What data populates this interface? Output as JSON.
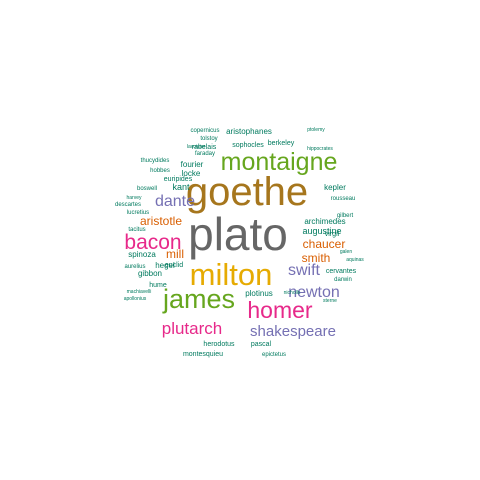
{
  "colors": {
    "teal": "#1b9e77",
    "orange": "#d95f02",
    "purple": "#7570b3",
    "pink": "#e7298a",
    "green": "#66a61e",
    "gold": "#e6ab02",
    "brown": "#a6761d",
    "gray": "#666666",
    "small": "#007a5e"
  },
  "words": [
    {
      "text": "plato",
      "color": "gray"
    },
    {
      "text": "goethe",
      "color": "brown"
    },
    {
      "text": "milton",
      "color": "gold"
    },
    {
      "text": "montaigne",
      "color": "green"
    },
    {
      "text": "james",
      "color": "green"
    },
    {
      "text": "homer",
      "color": "pink"
    },
    {
      "text": "bacon",
      "color": "pink"
    },
    {
      "text": "plutarch",
      "color": "pink"
    },
    {
      "text": "shakespeare",
      "color": "purple"
    },
    {
      "text": "newton",
      "color": "purple"
    },
    {
      "text": "swift",
      "color": "purple"
    },
    {
      "text": "dante",
      "color": "purple"
    },
    {
      "text": "aristotle",
      "color": "orange"
    },
    {
      "text": "chaucer",
      "color": "orange"
    },
    {
      "text": "smith",
      "color": "orange"
    },
    {
      "text": "mill",
      "color": "orange"
    },
    {
      "text": "augustine",
      "color": "small"
    },
    {
      "text": "archimedes",
      "color": "small"
    },
    {
      "text": "kant",
      "color": "small"
    },
    {
      "text": "hegel",
      "color": "small"
    },
    {
      "text": "plotinus",
      "color": "small"
    },
    {
      "text": "spinoza",
      "color": "small"
    },
    {
      "text": "gibbon",
      "color": "small"
    },
    {
      "text": "locke",
      "color": "small"
    },
    {
      "text": "fourier",
      "color": "small"
    },
    {
      "text": "euripides",
      "color": "small"
    },
    {
      "text": "kepler",
      "color": "small"
    },
    {
      "text": "virgil",
      "color": "small"
    },
    {
      "text": "rousseau",
      "color": "small"
    },
    {
      "text": "cervantes",
      "color": "small"
    },
    {
      "text": "darwin",
      "color": "small"
    },
    {
      "text": "herodotus",
      "color": "small"
    },
    {
      "text": "pascal",
      "color": "small"
    },
    {
      "text": "aristophanes",
      "color": "small"
    },
    {
      "text": "sophocles",
      "color": "small"
    },
    {
      "text": "rabelais",
      "color": "small"
    },
    {
      "text": "berkeley",
      "color": "small"
    },
    {
      "text": "montesquieu",
      "color": "small"
    },
    {
      "text": "epictetus",
      "color": "small"
    },
    {
      "text": "euclid",
      "color": "small"
    },
    {
      "text": "aurelius",
      "color": "small"
    },
    {
      "text": "hume",
      "color": "small"
    },
    {
      "text": "boswell",
      "color": "small"
    },
    {
      "text": "descartes",
      "color": "small"
    },
    {
      "text": "lucretius",
      "color": "small"
    },
    {
      "text": "tacitus",
      "color": "small"
    },
    {
      "text": "harvey",
      "color": "small"
    },
    {
      "text": "thucydides",
      "color": "small"
    },
    {
      "text": "hobbes",
      "color": "small"
    },
    {
      "text": "faraday",
      "color": "small"
    },
    {
      "text": "tolstoy",
      "color": "small"
    },
    {
      "text": "copernicus",
      "color": "small"
    },
    {
      "text": "ptolemy",
      "color": "small"
    },
    {
      "text": "lavoisier",
      "color": "small"
    },
    {
      "text": "hippocrates",
      "color": "small"
    },
    {
      "text": "gilbert",
      "color": "small"
    },
    {
      "text": "galen",
      "color": "small"
    },
    {
      "text": "aquinas",
      "color": "small"
    },
    {
      "text": "machiavelli",
      "color": "small"
    },
    {
      "text": "apollonius",
      "color": "small"
    },
    {
      "text": "sterne",
      "color": "small"
    },
    {
      "text": "nicholls",
      "color": "small"
    }
  ]
}
